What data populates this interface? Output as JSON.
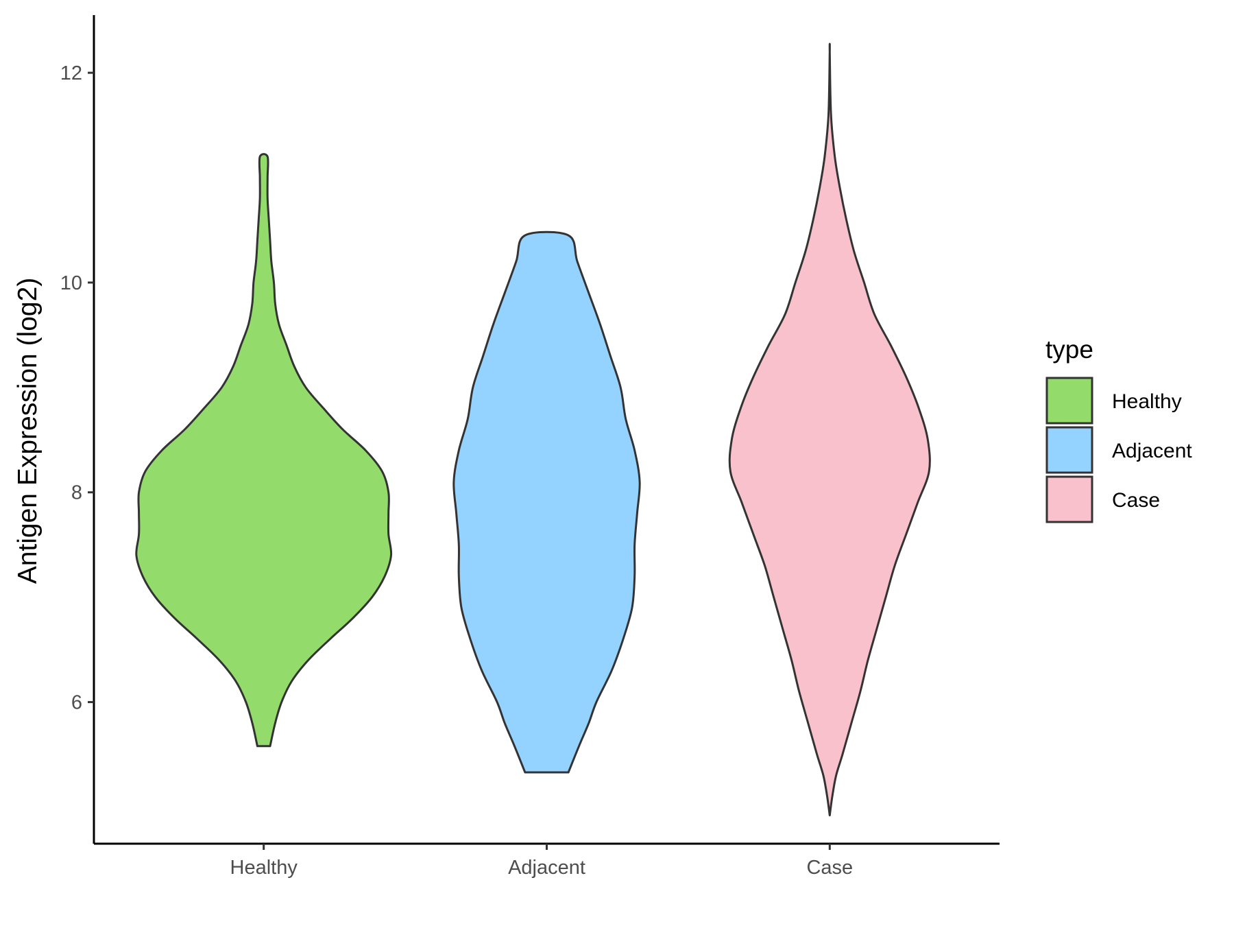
{
  "chart_data": {
    "type": "violin",
    "title": "",
    "xlabel": "",
    "ylabel": "Antigen Expression (log2)",
    "ylim": [
      4.65,
      12.55
    ],
    "y_ticks": [
      6,
      8,
      10,
      12
    ],
    "y_tick_labels": [
      "6",
      "8",
      "10",
      "12"
    ],
    "grid": false,
    "categories": [
      "Healthy",
      "Adjacent",
      "Case"
    ],
    "legend": {
      "title": "type",
      "placement": "right",
      "items": [
        {
          "label": "Healthy",
          "color": "#93DC6B"
        },
        {
          "label": "Adjacent",
          "color": "#94D2FF"
        },
        {
          "label": "Case",
          "color": "#F8C1CC"
        }
      ]
    },
    "series": [
      {
        "category": "Healthy",
        "color": "#93DC6B",
        "min": 5.58,
        "max": 11.2,
        "profile": [
          [
            5.58,
            0.05
          ],
          [
            5.8,
            0.09
          ],
          [
            6.0,
            0.14
          ],
          [
            6.2,
            0.22
          ],
          [
            6.4,
            0.35
          ],
          [
            6.6,
            0.52
          ],
          [
            6.8,
            0.7
          ],
          [
            7.0,
            0.85
          ],
          [
            7.2,
            0.95
          ],
          [
            7.4,
            1.0
          ],
          [
            7.6,
            0.98
          ],
          [
            7.8,
            0.98
          ],
          [
            8.0,
            0.98
          ],
          [
            8.2,
            0.93
          ],
          [
            8.4,
            0.8
          ],
          [
            8.6,
            0.62
          ],
          [
            8.8,
            0.47
          ],
          [
            9.0,
            0.33
          ],
          [
            9.2,
            0.24
          ],
          [
            9.4,
            0.18
          ],
          [
            9.6,
            0.12
          ],
          [
            9.8,
            0.09
          ],
          [
            10.0,
            0.08
          ],
          [
            10.2,
            0.06
          ],
          [
            10.4,
            0.05
          ],
          [
            10.6,
            0.04
          ],
          [
            10.8,
            0.03
          ],
          [
            11.0,
            0.03
          ],
          [
            11.2,
            0.03
          ]
        ]
      },
      {
        "category": "Adjacent",
        "color": "#94D2FF",
        "min": 5.33,
        "max": 10.45,
        "profile": [
          [
            5.33,
            0.17
          ],
          [
            5.6,
            0.26
          ],
          [
            5.8,
            0.33
          ],
          [
            6.0,
            0.39
          ],
          [
            6.3,
            0.51
          ],
          [
            6.6,
            0.6
          ],
          [
            6.9,
            0.67
          ],
          [
            7.2,
            0.69
          ],
          [
            7.5,
            0.69
          ],
          [
            7.8,
            0.71
          ],
          [
            8.1,
            0.73
          ],
          [
            8.4,
            0.69
          ],
          [
            8.7,
            0.62
          ],
          [
            9.0,
            0.58
          ],
          [
            9.3,
            0.5
          ],
          [
            9.6,
            0.42
          ],
          [
            9.9,
            0.33
          ],
          [
            10.2,
            0.24
          ],
          [
            10.45,
            0.17
          ]
        ]
      },
      {
        "category": "Case",
        "color": "#F8C1CC",
        "min": 4.92,
        "max": 12.2,
        "profile": [
          [
            4.92,
            0.0
          ],
          [
            5.1,
            0.02
          ],
          [
            5.3,
            0.05
          ],
          [
            5.5,
            0.1
          ],
          [
            5.8,
            0.17
          ],
          [
            6.1,
            0.24
          ],
          [
            6.4,
            0.3
          ],
          [
            6.7,
            0.37
          ],
          [
            7.0,
            0.44
          ],
          [
            7.3,
            0.51
          ],
          [
            7.6,
            0.6
          ],
          [
            7.9,
            0.69
          ],
          [
            8.2,
            0.78
          ],
          [
            8.5,
            0.77
          ],
          [
            8.8,
            0.7
          ],
          [
            9.1,
            0.6
          ],
          [
            9.4,
            0.48
          ],
          [
            9.7,
            0.35
          ],
          [
            10.0,
            0.27
          ],
          [
            10.3,
            0.19
          ],
          [
            10.6,
            0.13
          ],
          [
            10.9,
            0.08
          ],
          [
            11.2,
            0.04
          ],
          [
            11.6,
            0.01
          ],
          [
            12.2,
            0.0
          ]
        ]
      }
    ]
  }
}
